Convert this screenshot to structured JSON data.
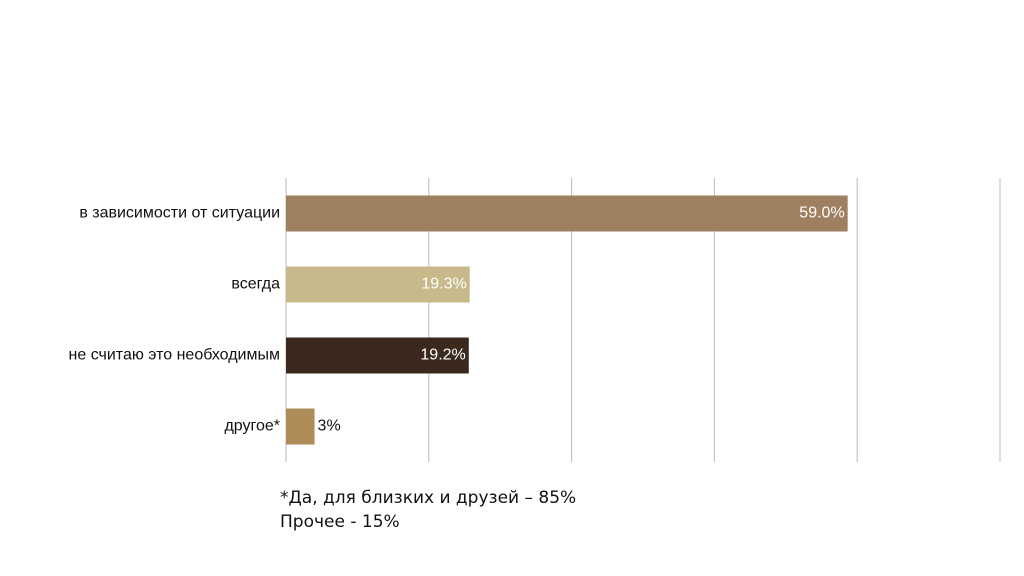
{
  "chart_data": {
    "type": "barh",
    "categories": [
      "в зависимости от ситуации",
      "всегда",
      "не считаю это необходимым",
      "другое*"
    ],
    "series": [
      {
        "values": [
          59.0,
          19.3,
          19.2,
          3
        ],
        "value_labels": [
          "59.0%",
          "19.3%",
          "19.2%",
          "3%"
        ],
        "colors": [
          "#9e7f5f",
          "#c8b98b",
          "#3b291d",
          "#ad8c58"
        ]
      }
    ],
    "xlim": [
      0,
      75
    ],
    "xticks": [
      0,
      15,
      30,
      45,
      60,
      75
    ],
    "grid": true,
    "footnote": [
      "*Да, для близких и друзей – 85%",
      "Прочее - 15%"
    ]
  }
}
